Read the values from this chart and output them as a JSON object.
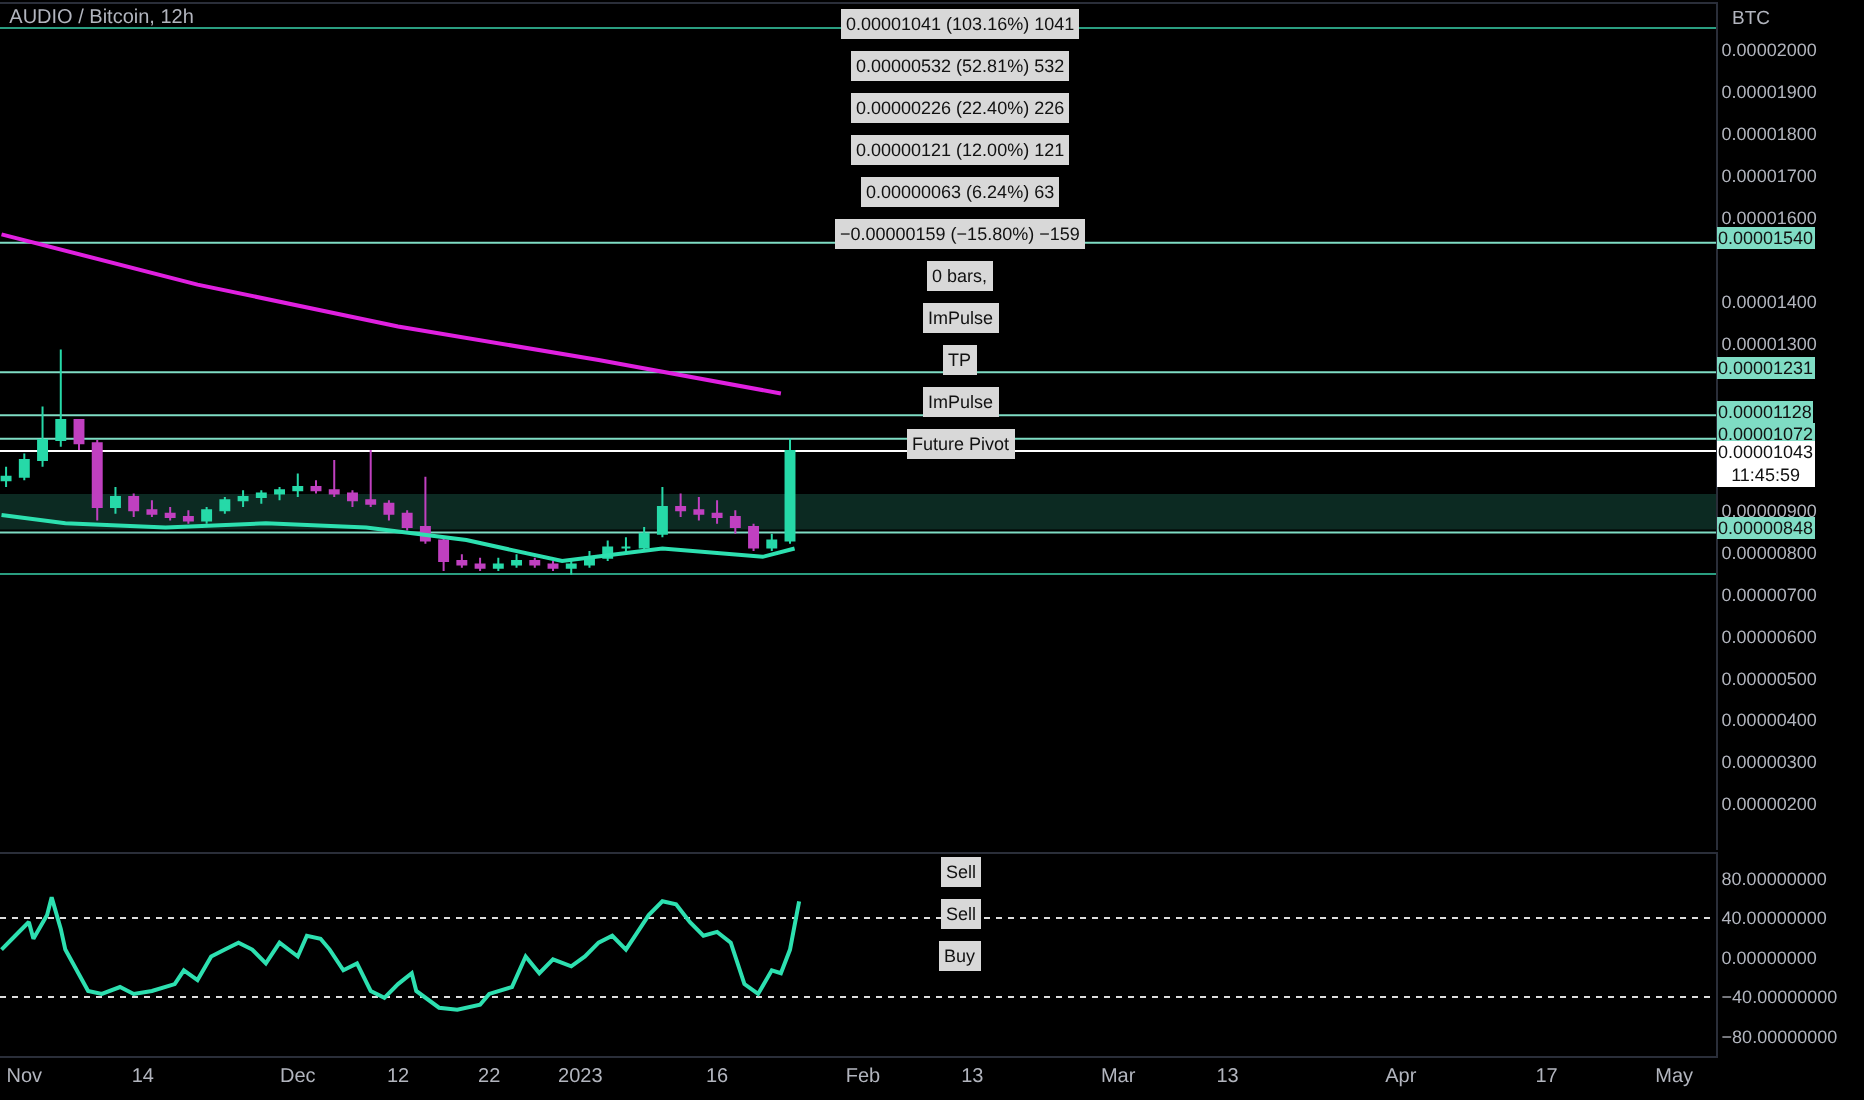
{
  "chart_data": [
    {
      "type": "candlestick",
      "title": "AUDIO / Bitcoin, 12h",
      "ylabel": "BTC",
      "tick_labels": "y",
      "x": [
        "2022-10-30",
        "2022-11-01",
        "2022-11-03",
        "2022-11-05",
        "2022-11-07",
        "2022-11-09",
        "2022-11-11",
        "2022-11-13",
        "2022-11-15",
        "2022-11-17",
        "2022-11-19",
        "2022-11-21",
        "2022-11-23",
        "2022-11-25",
        "2022-11-27",
        "2022-11-29",
        "2022-12-01",
        "2022-12-03",
        "2022-12-05",
        "2022-12-07",
        "2022-12-09",
        "2022-12-11",
        "2022-12-13",
        "2022-12-15",
        "2022-12-17",
        "2022-12-19",
        "2022-12-21",
        "2022-12-23",
        "2022-12-25",
        "2022-12-27",
        "2022-12-29",
        "2022-12-31",
        "2023-01-02",
        "2023-01-04",
        "2023-01-06",
        "2023-01-08",
        "2023-01-10",
        "2023-01-12",
        "2023-01-14",
        "2023-01-16",
        "2023-01-18",
        "2023-01-20",
        "2023-01-22",
        "2023-01-24"
      ],
      "ohlc": [
        [
          9.73e-06,
          1.005e-05,
          9.57e-06,
          9.81e-06
        ],
        [
          9.81e-06,
          1.037e-05,
          9.73e-06,
          1.021e-05
        ],
        [
          1.021e-05,
          1.149e-05,
          1.005e-05,
          1.069e-05
        ],
        [
          1.069e-05,
          1.285e-05,
          1.053e-05,
          1.117e-05
        ],
        [
          1.117e-05,
          1.117e-05,
          1.045e-05,
          1.061e-05
        ],
        [
          1.061e-05,
          1.069e-05,
          8.77e-06,
          9.09e-06
        ],
        [
          9.09e-06,
          9.57e-06,
          8.93e-06,
          9.33e-06
        ],
        [
          9.33e-06,
          9.41e-06,
          8.85e-06,
          9.01e-06
        ],
        [
          9.01e-06,
          9.25e-06,
          8.85e-06,
          8.93e-06
        ],
        [
          8.93e-06,
          9.09e-06,
          8.77e-06,
          8.85e-06
        ],
        [
          8.85e-06,
          9.01e-06,
          8.69e-06,
          8.77e-06
        ],
        [
          8.77e-06,
          9.09e-06,
          8.69e-06,
          9.01e-06
        ],
        [
          9.01e-06,
          9.33e-06,
          8.93e-06,
          9.25e-06
        ],
        [
          9.25e-06,
          9.49e-06,
          9.09e-06,
          9.33e-06
        ],
        [
          9.33e-06,
          9.49e-06,
          9.17e-06,
          9.41e-06
        ],
        [
          9.41e-06,
          9.57e-06,
          9.25e-06,
          9.49e-06
        ],
        [
          9.49e-06,
          9.89e-06,
          9.33e-06,
          9.57e-06
        ],
        [
          9.57e-06,
          9.73e-06,
          9.41e-06,
          9.49e-06
        ],
        [
          9.49e-06,
          1.021e-05,
          9.33e-06,
          9.41e-06
        ],
        [
          9.41e-06,
          9.49e-06,
          9.09e-06,
          9.25e-06
        ],
        [
          9.25e-06,
          1.045e-05,
          9.09e-06,
          9.17e-06
        ],
        [
          9.17e-06,
          9.25e-06,
          8.77e-06,
          8.93e-06
        ],
        [
          8.93e-06,
          9.01e-06,
          8.53e-06,
          8.61e-06
        ],
        [
          8.61e-06,
          9.81e-06,
          8.21e-06,
          8.29e-06
        ],
        [
          8.29e-06,
          8.37e-06,
          7.56e-06,
          7.8e-06
        ],
        [
          7.8e-06,
          7.96e-06,
          7.64e-06,
          7.72e-06
        ],
        [
          7.72e-06,
          7.88e-06,
          7.56e-06,
          7.64e-06
        ],
        [
          7.64e-06,
          7.88e-06,
          7.56e-06,
          7.72e-06
        ],
        [
          7.72e-06,
          7.96e-06,
          7.64e-06,
          7.8e-06
        ],
        [
          7.8e-06,
          7.88e-06,
          7.64e-06,
          7.72e-06
        ],
        [
          7.72e-06,
          7.8e-06,
          7.56e-06,
          7.64e-06
        ],
        [
          7.64e-06,
          7.8e-06,
          7.48e-06,
          7.72e-06
        ],
        [
          7.72e-06,
          8.04e-06,
          7.64e-06,
          7.88e-06
        ],
        [
          7.88e-06,
          8.29e-06,
          7.8e-06,
          8.12e-06
        ],
        [
          8.12e-06,
          8.37e-06,
          7.96e-06,
          8.12e-06
        ],
        [
          8.12e-06,
          8.61e-06,
          8.04e-06,
          8.45e-06
        ],
        [
          8.45e-06,
          9.57e-06,
          8.37e-06,
          9.09e-06
        ],
        [
          9.09e-06,
          9.41e-06,
          8.85e-06,
          9.01e-06
        ],
        [
          9.01e-06,
          9.33e-06,
          8.77e-06,
          8.93e-06
        ],
        [
          8.93e-06,
          9.25e-06,
          8.69e-06,
          8.85e-06
        ],
        [
          8.85e-06,
          9.01e-06,
          8.45e-06,
          8.61e-06
        ],
        [
          8.61e-06,
          8.69e-06,
          8.04e-06,
          8.12e-06
        ],
        [
          8.12e-06,
          8.45e-06,
          8.04e-06,
          8.29e-06
        ],
        [
          8.29e-06,
          1.072e-05,
          8.21e-06,
          1.043e-05
        ]
      ],
      "series": [
        {
          "type": "line",
          "color": "#e020e0",
          "x": [
            "2022-10-29T12:00",
            "2022-11-20",
            "2022-12-12",
            "2023-01-03",
            "2023-01-23"
          ],
          "values": [
            1.56e-05,
            1.44e-05,
            1.34e-05,
            1.26e-05,
            1.18e-05
          ]
        },
        {
          "type": "line",
          "color": "#2de0b0",
          "x": [
            "2022-10-29T12:00",
            "2022-11-05T12:00",
            "2022-11-16T12:00",
            "2022-11-27T12:00",
            "2022-12-08T12:00",
            "2022-12-19T12:00",
            "2022-12-30",
            "2023-01-10",
            "2023-01-21",
            "2023-01-24T12:00"
          ],
          "values": [
            8.9e-06,
            8.7e-06,
            8.6e-06,
            8.7e-06,
            8.6e-06,
            8.3e-06,
            7.8e-06,
            8.1e-06,
            7.9e-06,
            8.1e-06
          ]
        }
      ],
      "xlim": [
        "2022-10-29T08:00",
        "2023-05-05T14:00"
      ],
      "ylim": [
        9e-07,
        2.11e-05
      ],
      "yticks": [
        {
          "value": 2e-06,
          "label": "0.00000200"
        },
        {
          "value": 3e-06,
          "label": "0.00000300"
        },
        {
          "value": 4e-06,
          "label": "0.00000400"
        },
        {
          "value": 5e-06,
          "label": "0.00000500"
        },
        {
          "value": 6e-06,
          "label": "0.00000600"
        },
        {
          "value": 7e-06,
          "label": "0.00000700"
        },
        {
          "value": 8e-06,
          "label": "0.00000800"
        },
        {
          "value": 9e-06,
          "label": "0.00000900"
        },
        {
          "value": 1.3e-05,
          "label": "0.00001300"
        },
        {
          "value": 1.4e-05,
          "label": "0.00001400"
        },
        {
          "value": 1.6e-05,
          "label": "0.00001600"
        },
        {
          "value": 1.7e-05,
          "label": "0.00001700"
        },
        {
          "value": 1.8e-05,
          "label": "0.00001800"
        },
        {
          "value": 1.9e-05,
          "label": "0.00001900"
        },
        {
          "value": 2e-05,
          "label": "0.00002000"
        }
      ],
      "ref_lines": [
        {
          "axis": "y",
          "value": 2.053e-05,
          "label": null,
          "color": "#2a9d80"
        },
        {
          "axis": "y",
          "value": 1.54e-05,
          "label": "0.00001540",
          "color": "#7fdcc4"
        },
        {
          "axis": "y",
          "value": 1.231e-05,
          "label": "0.00001231",
          "color": "#7fdcc4"
        },
        {
          "axis": "y",
          "value": 1.128e-05,
          "label": "0.00001128",
          "color": "#7fdcc4"
        },
        {
          "axis": "y",
          "value": 1.072e-05,
          "label": "0.00001072",
          "color": "#7fdcc4"
        },
        {
          "axis": "y",
          "value": 1.043e-05,
          "label": "0.00001043\n11:45:59",
          "color": "#ffffff"
        },
        {
          "axis": "y",
          "value": 8.48e-06,
          "label": "0.00000848",
          "color": "#7fdcc4"
        },
        {
          "axis": "y",
          "value": 7.49e-06,
          "label": null,
          "color": "#2a9d80"
        }
      ],
      "bands": [
        {
          "axis": "y",
          "from": 8.55e-06,
          "to": 9.4e-06,
          "color": "#0c2a22"
        }
      ],
      "annotations": [
        "0.00001041 (103.16%) 1041",
        "0.00000532 (52.81%) 532",
        "0.00000226 (22.40%) 226",
        "0.00000121 (12.00%) 121",
        "0.00000063 (6.24%) 63",
        "−0.00000159 (−15.80%) −159",
        "0 bars,",
        "ImPulse",
        "TP",
        "ImPulse",
        "Future Pivot"
      ]
    },
    {
      "type": "line",
      "series": [
        {
          "color": "#2de0b0",
          "x": [
            "2022-10-29T12:00",
            "2022-10-31",
            "2022-11-01T12:00",
            "2022-11-02",
            "2022-11-03T12:00",
            "2022-11-04",
            "2022-11-05",
            "2022-11-05T12:00",
            "2022-11-08",
            "2022-11-09T12:00",
            "2022-11-11T12:00",
            "2022-11-13",
            "2022-11-15",
            "2022-11-17T12:00",
            "2022-11-18T12:00",
            "2022-11-20",
            "2022-11-21T12:00",
            "2022-11-23",
            "2022-11-24T12:00",
            "2022-11-26",
            "2022-11-27T12:00",
            "2022-11-29",
            "2022-12-01",
            "2022-12-02",
            "2022-12-03T12:00",
            "2022-12-04T12:00",
            "2022-12-06",
            "2022-12-07T12:00",
            "2022-12-09",
            "2022-12-10T12:00",
            "2022-12-12",
            "2022-12-13T12:00",
            "2022-12-14",
            "2022-12-16T12:00",
            "2022-12-18T12:00",
            "2022-12-21",
            "2022-12-22",
            "2022-12-24T12:00",
            "2022-12-26",
            "2022-12-27T12:00",
            "2022-12-29",
            "2022-12-31",
            "2023-01-01T12:00",
            "2023-01-03",
            "2023-01-04T12:00",
            "2023-01-06",
            "2023-01-07",
            "2023-01-08T12:00",
            "2023-01-10",
            "2023-01-11T12:00",
            "2023-01-13",
            "2023-01-14T12:00",
            "2023-01-16",
            "2023-01-17T12:00",
            "2023-01-19",
            "2023-01-20T12:00",
            "2023-01-22",
            "2023-01-23",
            "2023-01-24",
            "2023-01-25"
          ],
          "values": [
            8,
            22,
            36,
            19,
            43,
            61,
            29,
            8,
            -34,
            -37,
            -30,
            -37,
            -34,
            -27,
            -13,
            -23,
            1,
            8,
            15,
            8,
            -6,
            15,
            1,
            22,
            19,
            8,
            -13,
            -6,
            -34,
            -41,
            -27,
            -16,
            -34,
            -51,
            -53,
            -48,
            -37,
            -30,
            1,
            -16,
            -2,
            -9,
            1,
            15,
            22,
            8,
            22,
            43,
            57,
            54,
            36,
            22,
            26,
            15,
            -27,
            -37,
            -13,
            -16,
            8,
            57
          ]
        }
      ],
      "xlim": [
        "2022-10-29T08:00",
        "2023-05-05T14:00"
      ],
      "xticks": [
        {
          "value": "2022-11-01",
          "label": "Nov"
        },
        {
          "value": "2022-11-14",
          "label": "14"
        },
        {
          "value": "2022-12-01",
          "label": "Dec"
        },
        {
          "value": "2022-12-12",
          "label": "12"
        },
        {
          "value": "2022-12-22",
          "label": "22"
        },
        {
          "value": "2023-01-01",
          "label": "2023"
        },
        {
          "value": "2023-01-16",
          "label": "16"
        },
        {
          "value": "2023-02-01",
          "label": "Feb"
        },
        {
          "value": "2023-02-13",
          "label": "13"
        },
        {
          "value": "2023-03-01",
          "label": "Mar"
        },
        {
          "value": "2023-03-13",
          "label": "13"
        },
        {
          "value": "2023-04-01",
          "label": "Apr"
        },
        {
          "value": "2023-04-17",
          "label": "17"
        },
        {
          "value": "2023-05-01",
          "label": "May"
        }
      ],
      "ylim": [
        -100,
        105
      ],
      "yticks": [
        {
          "value": 80,
          "label": "80.00000000"
        },
        {
          "value": 40,
          "label": "40.00000000"
        },
        {
          "value": 0,
          "label": "0.00000000"
        },
        {
          "value": -40,
          "label": "−40.00000000"
        },
        {
          "value": -80,
          "label": "−80.00000000"
        }
      ],
      "ref_lines": [
        {
          "axis": "y",
          "value": 40,
          "label": null,
          "color": "#dddddd",
          "line_style": "dotted"
        },
        {
          "axis": "y",
          "value": -40,
          "label": null,
          "color": "#dddddd",
          "line_style": "dotted"
        }
      ],
      "annotations": [
        "Sell",
        "Sell",
        "Buy"
      ]
    }
  ]
}
